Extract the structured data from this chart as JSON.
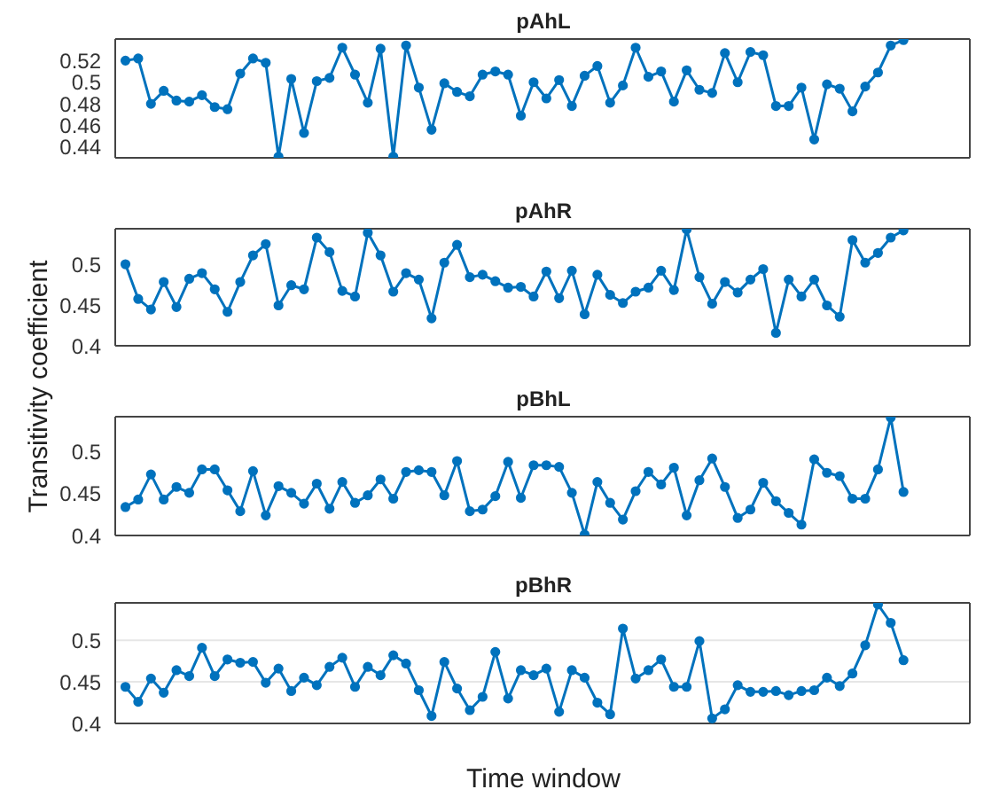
{
  "chart_data": [
    {
      "type": "line",
      "title": "pAhL",
      "ylabel": "Transitivity coefficient",
      "categories": [
        null,
        null,
        null,
        null,
        null,
        null,
        null,
        null,
        null,
        null,
        null,
        null,
        null,
        null,
        null,
        null,
        null,
        null,
        null,
        null,
        null,
        null,
        null,
        null,
        null,
        null,
        null,
        null,
        null,
        null,
        null,
        null,
        null,
        null,
        null,
        null,
        null,
        null,
        null,
        null,
        null,
        null,
        null,
        null,
        null,
        null,
        null,
        null,
        null,
        null,
        null,
        null,
        null,
        null,
        null,
        null,
        null,
        null,
        null,
        null,
        null,
        null
      ],
      "series": [
        {
          "color": "#0072bd",
          "values": [
            0.52,
            0.522,
            0.48,
            0.492,
            0.483,
            0.482,
            0.488,
            0.477,
            0.475,
            0.508,
            0.522,
            0.518,
            0.431,
            0.503,
            0.453,
            0.501,
            0.504,
            0.532,
            0.507,
            0.481,
            0.531,
            0.431,
            0.534,
            0.495,
            0.456,
            0.499,
            0.491,
            0.487,
            0.507,
            0.51,
            0.507,
            0.469,
            0.5,
            0.485,
            0.502,
            0.478,
            0.506,
            0.515,
            0.481,
            0.497,
            0.532,
            0.505,
            0.51,
            0.482,
            0.511,
            0.493,
            0.49,
            0.527,
            0.5,
            0.528,
            0.525,
            0.478,
            0.478,
            0.495,
            0.447,
            0.498,
            0.494,
            0.473,
            0.496,
            0.509,
            0.534,
            0.539
          ]
        }
      ],
      "ylim": [
        0.43,
        0.54
      ],
      "yticks": [
        0.44,
        0.46,
        0.48,
        0.5,
        0.52
      ],
      "tick_labels": "y",
      "marker": "circle",
      "grid": false
    },
    {
      "type": "line",
      "title": "pAhR",
      "categories": [
        null,
        null,
        null,
        null,
        null,
        null,
        null,
        null,
        null,
        null,
        null,
        null,
        null,
        null,
        null,
        null,
        null,
        null,
        null,
        null,
        null,
        null,
        null,
        null,
        null,
        null,
        null,
        null,
        null,
        null,
        null,
        null,
        null,
        null,
        null,
        null,
        null,
        null,
        null,
        null,
        null,
        null,
        null,
        null,
        null,
        null,
        null,
        null,
        null,
        null,
        null,
        null,
        null,
        null,
        null,
        null,
        null,
        null,
        null,
        null,
        null,
        null
      ],
      "series": [
        {
          "color": "#0072bd",
          "values": [
            0.501,
            0.458,
            0.445,
            0.479,
            0.448,
            0.483,
            0.49,
            0.47,
            0.442,
            0.479,
            0.512,
            0.526,
            0.45,
            0.475,
            0.47,
            0.534,
            0.516,
            0.468,
            0.461,
            0.54,
            0.512,
            0.467,
            0.49,
            0.482,
            0.434,
            0.503,
            0.525,
            0.485,
            0.488,
            0.48,
            0.472,
            0.473,
            0.461,
            0.492,
            0.459,
            0.493,
            0.439,
            0.488,
            0.463,
            0.453,
            0.467,
            0.472,
            0.493,
            0.469,
            0.544,
            0.485,
            0.452,
            0.479,
            0.466,
            0.482,
            0.495,
            0.416,
            0.482,
            0.461,
            0.482,
            0.45,
            0.436,
            0.531,
            0.503,
            0.515,
            0.534,
            0.543
          ]
        }
      ],
      "ylim": [
        0.4,
        0.545
      ],
      "yticks": [
        0.4,
        0.45,
        0.5
      ],
      "tick_labels": "y",
      "marker": "circle",
      "grid": false
    },
    {
      "type": "line",
      "title": "pBhL",
      "categories": [
        null,
        null,
        null,
        null,
        null,
        null,
        null,
        null,
        null,
        null,
        null,
        null,
        null,
        null,
        null,
        null,
        null,
        null,
        null,
        null,
        null,
        null,
        null,
        null,
        null,
        null,
        null,
        null,
        null,
        null,
        null,
        null,
        null,
        null,
        null,
        null,
        null,
        null,
        null,
        null,
        null,
        null,
        null,
        null,
        null,
        null,
        null,
        null,
        null,
        null,
        null,
        null,
        null,
        null,
        null,
        null,
        null,
        null,
        null,
        null,
        null,
        null
      ],
      "series": [
        {
          "color": "#0072bd",
          "values": [
            0.434,
            0.443,
            0.473,
            0.443,
            0.458,
            0.451,
            0.479,
            0.479,
            0.454,
            0.429,
            0.477,
            0.424,
            0.459,
            0.451,
            0.438,
            0.462,
            0.432,
            0.464,
            0.439,
            0.448,
            0.467,
            0.444,
            0.476,
            0.478,
            0.476,
            0.448,
            0.489,
            0.429,
            0.431,
            0.447,
            0.488,
            0.445,
            0.484,
            0.484,
            0.482,
            0.451,
            0.401,
            0.464,
            0.439,
            0.419,
            0.453,
            0.476,
            0.461,
            0.481,
            0.424,
            0.466,
            0.492,
            0.458,
            0.421,
            0.431,
            0.463,
            0.441,
            0.427,
            0.413,
            0.491,
            0.475,
            0.471,
            0.444,
            0.444,
            0.479,
            0.541,
            0.452
          ]
        }
      ],
      "ylim": [
        0.4,
        0.542
      ],
      "yticks": [
        0.4,
        0.45,
        0.5
      ],
      "tick_labels": "y",
      "marker": "circle",
      "grid": false
    },
    {
      "type": "line",
      "title": "pBhR",
      "xlabel": "Time window",
      "categories": [
        null,
        null,
        null,
        null,
        null,
        null,
        null,
        null,
        null,
        null,
        null,
        null,
        null,
        null,
        null,
        null,
        null,
        null,
        null,
        null,
        null,
        null,
        null,
        null,
        null,
        null,
        null,
        null,
        null,
        null,
        null,
        null,
        null,
        null,
        null,
        null,
        null,
        null,
        null,
        null,
        null,
        null,
        null,
        null,
        null,
        null,
        null,
        null,
        null,
        null,
        null,
        null,
        null,
        null,
        null,
        null,
        null,
        null,
        null,
        null,
        null,
        null
      ],
      "series": [
        {
          "color": "#0072bd",
          "values": [
            0.444,
            0.426,
            0.454,
            0.437,
            0.464,
            0.457,
            0.491,
            0.457,
            0.477,
            0.473,
            0.474,
            0.449,
            0.466,
            0.439,
            0.455,
            0.446,
            0.468,
            0.479,
            0.444,
            0.468,
            0.458,
            0.482,
            0.472,
            0.44,
            0.409,
            0.474,
            0.442,
            0.416,
            0.432,
            0.486,
            0.43,
            0.464,
            0.458,
            0.466,
            0.414,
            0.464,
            0.455,
            0.425,
            0.411,
            0.514,
            0.454,
            0.464,
            0.477,
            0.444,
            0.444,
            0.499,
            0.406,
            0.417,
            0.446,
            0.438,
            0.438,
            0.439,
            0.434,
            0.439,
            0.44,
            0.455,
            0.445,
            0.46,
            0.494,
            0.543,
            0.521,
            0.476
          ]
        }
      ],
      "ylim": [
        0.4,
        0.545
      ],
      "yticks": [
        0.4,
        0.45,
        0.5
      ],
      "tick_labels": "y",
      "marker": "circle",
      "grid": "y"
    }
  ]
}
